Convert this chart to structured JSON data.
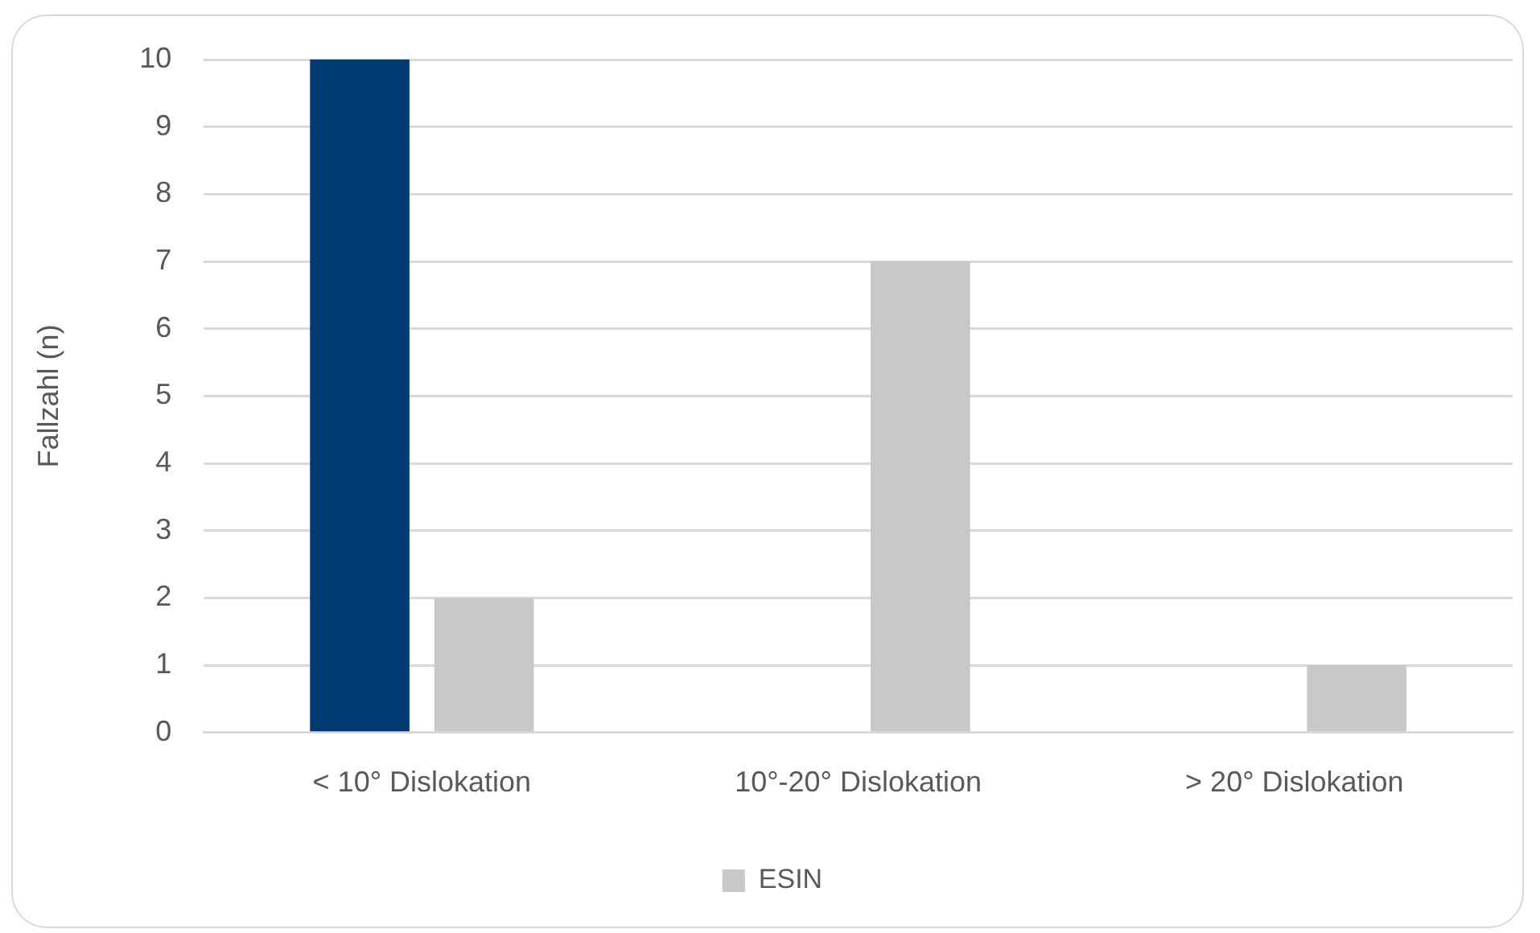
{
  "chart_data": {
    "type": "bar",
    "categories": [
      "< 10° Dislokation",
      "10°-20° Dislokation",
      "> 20° Dislokation"
    ],
    "series": [
      {
        "color": "#003a73",
        "values": [
          10,
          0,
          0
        ]
      },
      {
        "name": "ESIN",
        "color": "#c8c8c8",
        "values": [
          2,
          7,
          1
        ]
      }
    ],
    "ylabel": "Fallzahl (n)",
    "ylim": [
      0,
      10
    ],
    "yticks": [
      0,
      1,
      2,
      3,
      4,
      5,
      6,
      7,
      8,
      9,
      10
    ],
    "grid": "y",
    "legend": "bottom"
  }
}
